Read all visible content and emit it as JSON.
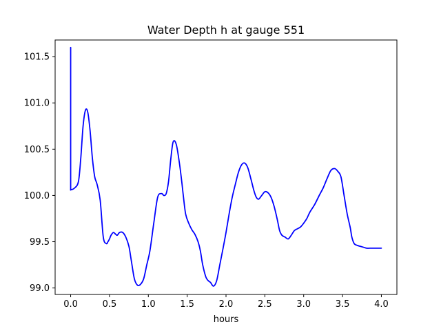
{
  "chart_data": {
    "type": "line",
    "title": "Water Depth h at gauge 551",
    "xlabel": "hours",
    "ylabel": "",
    "xlim": [
      -0.2,
      4.2
    ],
    "ylim": [
      98.93,
      101.68
    ],
    "xticks": [
      0.0,
      0.5,
      1.0,
      1.5,
      2.0,
      2.5,
      3.0,
      3.5,
      4.0
    ],
    "xtick_labels": [
      "0.0",
      "0.5",
      "1.0",
      "1.5",
      "2.0",
      "2.5",
      "3.0",
      "3.5",
      "4.0"
    ],
    "yticks": [
      99.0,
      99.5,
      100.0,
      100.5,
      101.0,
      101.5
    ],
    "ytick_labels": [
      "99.0",
      "99.5",
      "100.0",
      "100.5",
      "101.0",
      "101.5"
    ],
    "grid": false,
    "series": [
      {
        "color": "#0000ff",
        "x": [
          0.0,
          0.0,
          0.003,
          0.05,
          0.1,
          0.13,
          0.16,
          0.19,
          0.22,
          0.25,
          0.28,
          0.31,
          0.34,
          0.38,
          0.42,
          0.46,
          0.48,
          0.5,
          0.52,
          0.55,
          0.58,
          0.6,
          0.63,
          0.67,
          0.71,
          0.75,
          0.78,
          0.82,
          0.86,
          0.9,
          0.94,
          0.98,
          1.02,
          1.07,
          1.12,
          1.17,
          1.2,
          1.23,
          1.26,
          1.29,
          1.32,
          1.36,
          1.4,
          1.43,
          1.45,
          1.48,
          1.52,
          1.56,
          1.6,
          1.64,
          1.67,
          1.7,
          1.74,
          1.77,
          1.8,
          1.84,
          1.88,
          1.92,
          1.96,
          2.0,
          2.04,
          2.08,
          2.12,
          2.16,
          2.2,
          2.24,
          2.28,
          2.32,
          2.36,
          2.39,
          2.42,
          2.46,
          2.5,
          2.54,
          2.58,
          2.62,
          2.66,
          2.69,
          2.72,
          2.76,
          2.8,
          2.84,
          2.88,
          2.92,
          2.96,
          3.0,
          3.04,
          3.08,
          3.14,
          3.2,
          3.25,
          3.3,
          3.35,
          3.4,
          3.44,
          3.48,
          3.52,
          3.56,
          3.6,
          3.62,
          3.65,
          3.69,
          3.73,
          3.77,
          3.81,
          3.85,
          3.9,
          3.95,
          4.0
        ],
        "y": [
          101.6,
          100.06,
          100.06,
          100.08,
          100.15,
          100.4,
          100.75,
          100.92,
          100.9,
          100.7,
          100.4,
          100.2,
          100.12,
          99.95,
          99.55,
          99.48,
          99.5,
          99.53,
          99.57,
          99.6,
          99.58,
          99.57,
          99.6,
          99.6,
          99.55,
          99.45,
          99.3,
          99.1,
          99.03,
          99.04,
          99.1,
          99.25,
          99.4,
          99.7,
          99.98,
          100.02,
          100.0,
          100.02,
          100.15,
          100.4,
          100.58,
          100.55,
          100.35,
          100.15,
          100.0,
          99.8,
          99.7,
          99.63,
          99.58,
          99.5,
          99.4,
          99.25,
          99.12,
          99.08,
          99.06,
          99.02,
          99.08,
          99.25,
          99.42,
          99.6,
          99.8,
          99.98,
          100.12,
          100.25,
          100.33,
          100.35,
          100.3,
          100.18,
          100.05,
          99.98,
          99.96,
          100.0,
          100.04,
          100.03,
          99.98,
          99.88,
          99.74,
          99.62,
          99.57,
          99.55,
          99.53,
          99.57,
          99.62,
          99.64,
          99.66,
          99.7,
          99.75,
          99.82,
          99.9,
          100.0,
          100.08,
          100.18,
          100.27,
          100.29,
          100.26,
          100.2,
          100.0,
          99.8,
          99.65,
          99.55,
          99.48,
          99.46,
          99.45,
          99.44,
          99.43,
          99.43,
          99.43,
          99.43,
          99.43
        ]
      }
    ]
  }
}
